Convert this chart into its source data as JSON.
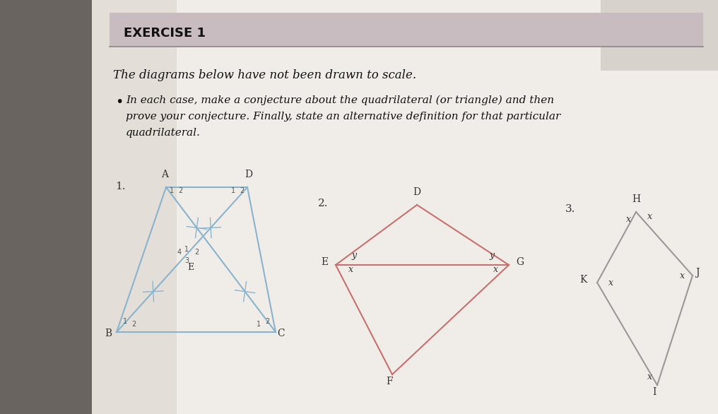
{
  "title_text": "EXERCISE 1",
  "body_text1": "The diagrams below have not been drawn to scale.",
  "body_text2": "In each case, make a conjecture about the quadrilateral (or triangle) and then",
  "body_text3": "prove your conjecture. Finally, state an alternative definition for that particular",
  "body_text4": "quadrilateral.",
  "diagram1_color": "#8ab4cc",
  "diagram2_color": "#c87070",
  "diagram3_color": "#999999",
  "label_color": "#333333",
  "angle_color": "#555555"
}
